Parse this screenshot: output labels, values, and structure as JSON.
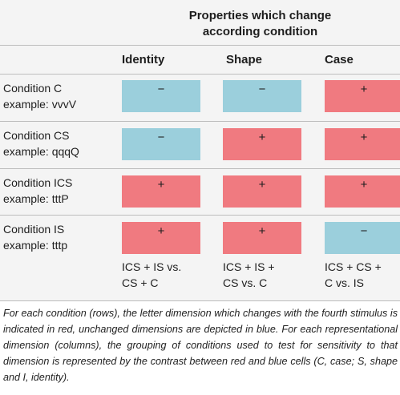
{
  "header": {
    "group_title_line1": "Properties which change",
    "group_title_line2": "according condition"
  },
  "columns": [
    {
      "label": "Identity"
    },
    {
      "label": "Shape"
    },
    {
      "label": "Case"
    }
  ],
  "rows": [
    {
      "label": "Condition C",
      "example": "example: vvvV",
      "cells": [
        {
          "symbol": "−",
          "color": "blue"
        },
        {
          "symbol": "−",
          "color": "blue"
        },
        {
          "symbol": "+",
          "color": "red"
        }
      ]
    },
    {
      "label": "Condition CS",
      "example": "example: qqqQ",
      "cells": [
        {
          "symbol": "−",
          "color": "blue"
        },
        {
          "symbol": "+",
          "color": "red"
        },
        {
          "symbol": "+",
          "color": "red"
        }
      ]
    },
    {
      "label": "Condition ICS",
      "example": "example: tttP",
      "cells": [
        {
          "symbol": "+",
          "color": "red"
        },
        {
          "symbol": "+",
          "color": "red"
        },
        {
          "symbol": "+",
          "color": "red"
        }
      ]
    },
    {
      "label": "Condition IS",
      "example": "example: tttp",
      "cells": [
        {
          "symbol": "+",
          "color": "red"
        },
        {
          "symbol": "+",
          "color": "red"
        },
        {
          "symbol": "−",
          "color": "blue"
        }
      ]
    }
  ],
  "summary": [
    {
      "line1": "ICS + IS vs.",
      "line2": "CS + C"
    },
    {
      "line1": "ICS + IS +",
      "line2": "CS vs. C"
    },
    {
      "line1": "ICS + CS +",
      "line2": "C vs. IS"
    }
  ],
  "caption": "For each condition (rows), the letter dimension which changes with the fourth stimulus is indicated in red, unchanged dimensions are depicted in blue. For each representational dimension (columns), the grouping of conditions used to test for sensitivity to that dimension is represented by the contrast between red and blue cells (C, case; S, shape and I, identity).",
  "colors": {
    "red": "#f07a80",
    "blue": "#9bcfdc",
    "background": "#f4f4f4"
  }
}
